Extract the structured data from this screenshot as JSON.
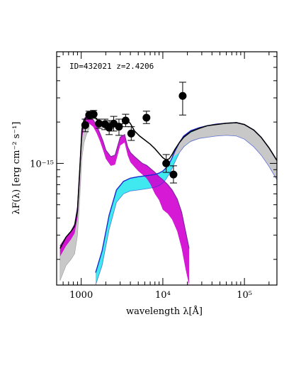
{
  "chart_data": {
    "type": "line",
    "xscale": "log",
    "yscale": "log",
    "xlim": [
      500,
      250000
    ],
    "ylim": [
      1.3e-16,
      6.5e-15
    ],
    "xlabel": "wavelength λ[Å]",
    "ylabel": "λF(λ) [erg cm⁻² s⁻¹]",
    "annotation": "ID=432021 z=2.4206",
    "x_tick_labels": [
      {
        "value": 1000,
        "label": "1000"
      },
      {
        "value": 10000,
        "label": "10⁴"
      },
      {
        "value": 100000,
        "label": "10⁵"
      }
    ],
    "y_tick_labels": [
      {
        "value": 1e-15,
        "label": "10⁻¹⁵"
      }
    ],
    "colors": {
      "total": "#000000",
      "stellar_band": "#d000d0",
      "stellar_line": "#7a2aa0",
      "torus_band": "#40e8f0",
      "torus_line": "#1a2ad0",
      "gray_band": "#c8c8c8",
      "points": "#000000"
    },
    "series": [
      {
        "role": "total model (black line)",
        "x": [
          550,
          650,
          750,
          830,
          900,
          960,
          1020,
          1080,
          1150,
          1250,
          1400,
          1600,
          1800,
          2000,
          2200,
          2500,
          2800,
          3200,
          3600,
          4000,
          4500,
          5200,
          6000,
          7000,
          8000,
          9000,
          10000,
          11000,
          12000,
          13000,
          14000,
          16000,
          18000,
          22000,
          28000,
          35000,
          45000,
          60000,
          80000,
          100000,
          130000,
          160000,
          200000,
          250000
        ],
        "y": [
          2.4e-16,
          2.9e-16,
          3.2e-16,
          3.5e-16,
          4.5e-16,
          9e-16,
          1.75e-15,
          2.05e-15,
          2.15e-15,
          2.22e-15,
          2.25e-15,
          2.05e-15,
          1.95e-15,
          1.9e-15,
          1.95e-15,
          1.88e-15,
          1.82e-15,
          1.95e-15,
          2.1e-15,
          1.95e-15,
          1.72e-15,
          1.58e-15,
          1.48e-15,
          1.38e-15,
          1.28e-15,
          1.18e-15,
          1.1e-15,
          1.06e-15,
          1.08e-15,
          1.16e-15,
          1.26e-15,
          1.42e-15,
          1.55e-15,
          1.7e-15,
          1.8e-15,
          1.88e-15,
          1.92e-15,
          1.96e-15,
          1.98e-15,
          1.92e-15,
          1.75e-15,
          1.55e-15,
          1.3e-15,
          1.05e-15
        ]
      },
      {
        "role": "stellar component (magenta band)",
        "x": [
          550,
          650,
          750,
          830,
          900,
          960,
          1020,
          1080,
          1150,
          1250,
          1400,
          1550,
          1700,
          1850,
          2000,
          2300,
          2600,
          3000,
          3400,
          3700,
          4000,
          4500,
          5000,
          5600,
          6300,
          7000,
          8000,
          9000,
          10000,
          11500,
          13000,
          15000,
          17000,
          19000,
          21000
        ],
        "lower": [
          2.1e-16,
          2.5e-16,
          2.8e-16,
          3.1e-16,
          4e-16,
          7.5e-16,
          1.5e-15,
          1.85e-15,
          1.95e-15,
          1.95e-15,
          1.85e-15,
          1.65e-15,
          1.45e-15,
          1.25e-15,
          1.08e-15,
          9.6e-16,
          9.8e-16,
          1.35e-15,
          1.42e-15,
          1.15e-15,
          1.02e-15,
          9.4e-16,
          8.8e-16,
          8.3e-16,
          7.8e-16,
          7.1e-16,
          6e-16,
          5.4e-16,
          4.6e-16,
          4.3e-16,
          3.9e-16,
          3.2e-16,
          2.4e-16,
          1.7e-16,
          1.3e-16
        ],
        "upper": [
          2.5e-16,
          2.9e-16,
          3.2e-16,
          3.6e-16,
          4.8e-16,
          9e-16,
          1.8e-15,
          2.1e-15,
          2.2e-15,
          2.18e-15,
          2.08e-15,
          1.88e-15,
          1.65e-15,
          1.45e-15,
          1.25e-15,
          1.12e-15,
          1.15e-15,
          1.55e-15,
          1.62e-15,
          1.32e-15,
          1.2e-15,
          1.12e-15,
          1.06e-15,
          1e-15,
          9.7e-16,
          9.2e-16,
          8.6e-16,
          8e-16,
          7.6e-16,
          7e-16,
          6.4e-16,
          5.5e-16,
          4.4e-16,
          3.2e-16,
          2.4e-16
        ]
      },
      {
        "role": "torus component (cyan band)",
        "x": [
          1500,
          1800,
          2200,
          2700,
          3300,
          4000,
          5000,
          6000,
          7000,
          8000,
          9000,
          10000,
          11000,
          12000,
          13000,
          14000,
          16000,
          18000,
          22000,
          28000,
          35000,
          45000,
          60000,
          80000,
          100000,
          130000,
          160000,
          200000,
          250000
        ],
        "lower": [
          1.3e-16,
          1.8e-16,
          3.3e-16,
          5.2e-16,
          6e-16,
          6.3e-16,
          6.4e-16,
          6.5e-16,
          6.6e-16,
          6.7e-16,
          6.9e-16,
          7.2e-16,
          7.7e-16,
          8.4e-16,
          9.2e-16,
          1.02e-15,
          1.2e-15,
          1.32e-15,
          1.45e-15,
          1.52e-15,
          1.55e-15,
          1.58e-15,
          1.6e-15,
          1.58e-15,
          1.5e-15,
          1.32e-15,
          1.15e-15,
          9.5e-16,
          7.6e-16
        ],
        "upper": [
          1.6e-16,
          2.3e-16,
          4.2e-16,
          6.4e-16,
          7.4e-16,
          7.8e-16,
          8e-16,
          8.1e-16,
          8.2e-16,
          8.3e-16,
          8.5e-16,
          8.8e-16,
          9.3e-16,
          1e-15,
          1.1e-15,
          1.22e-15,
          1.42e-15,
          1.58e-15,
          1.73e-15,
          1.82e-15,
          1.88e-15,
          1.93e-15,
          1.96e-15,
          1.98e-15,
          1.92e-15,
          1.75e-15,
          1.55e-15,
          1.3e-15,
          1.05e-15
        ]
      },
      {
        "role": "gray band",
        "x": [
          550,
          650,
          750,
          830,
          900,
          960,
          1020,
          1080,
          1150,
          1250
        ],
        "lower": [
          1.4e-16,
          1.8e-16,
          2e-16,
          2.2e-16,
          3e-16,
          5.5e-16,
          1.1e-15,
          1.4e-15,
          1.6e-15,
          1.8e-15
        ],
        "upper": [
          2.4e-16,
          2.9e-16,
          3.2e-16,
          3.5e-16,
          4.5e-16,
          9e-16,
          1.75e-15,
          2.05e-15,
          2.15e-15,
          2.22e-15
        ]
      },
      {
        "role": "gray band (long wavelength)",
        "x": [
          13000,
          16000,
          20000,
          28000,
          40000,
          60000,
          80000,
          100000,
          130000,
          160000,
          200000,
          250000
        ],
        "lower": [
          1.1e-15,
          1.2e-15,
          1.4e-15,
          1.52e-15,
          1.57e-15,
          1.6e-15,
          1.58e-15,
          1.5e-15,
          1.32e-15,
          1.15e-15,
          9.5e-16,
          7.6e-16
        ],
        "upper": [
          1.16e-15,
          1.42e-15,
          1.62e-15,
          1.8e-15,
          1.9e-15,
          1.96e-15,
          1.98e-15,
          1.92e-15,
          1.75e-15,
          1.55e-15,
          1.3e-15,
          1.05e-15
        ]
      }
    ],
    "points": [
      {
        "x": 1120,
        "y": 1.9e-15,
        "ylo": 1.7e-15,
        "yhi": 2.1e-15
      },
      {
        "x": 1250,
        "y": 2.25e-15,
        "ylo": 2.1e-15,
        "yhi": 2.4e-15
      },
      {
        "x": 1420,
        "y": 2.28e-15,
        "ylo": 2.13e-15,
        "yhi": 2.43e-15
      },
      {
        "x": 1650,
        "y": 1.95e-15,
        "ylo": 1.8e-15,
        "yhi": 2.1e-15
      },
      {
        "x": 1950,
        "y": 1.93e-15,
        "ylo": 1.76e-15,
        "yhi": 2.1e-15
      },
      {
        "x": 2200,
        "y": 1.82e-15,
        "ylo": 1.62e-15,
        "yhi": 2.05e-15
      },
      {
        "x": 2500,
        "y": 1.95e-15,
        "ylo": 1.72e-15,
        "yhi": 2.2e-15
      },
      {
        "x": 2900,
        "y": 1.85e-15,
        "ylo": 1.6e-15,
        "yhi": 2.1e-15
      },
      {
        "x": 3500,
        "y": 2.05e-15,
        "ylo": 1.85e-15,
        "yhi": 2.28e-15
      },
      {
        "x": 4100,
        "y": 1.65e-15,
        "ylo": 1.47e-15,
        "yhi": 1.85e-15
      },
      {
        "x": 6300,
        "y": 2.15e-15,
        "ylo": 1.95e-15,
        "yhi": 2.4e-15
      },
      {
        "x": 11000,
        "y": 1e-15,
        "ylo": 8.6e-16,
        "yhi": 1.16e-15
      },
      {
        "x": 13500,
        "y": 8.3e-16,
        "ylo": 7.2e-16,
        "yhi": 9.6e-16
      },
      {
        "x": 17500,
        "y": 3.1e-15,
        "ylo": 2.25e-15,
        "yhi": 3.9e-15
      }
    ]
  }
}
